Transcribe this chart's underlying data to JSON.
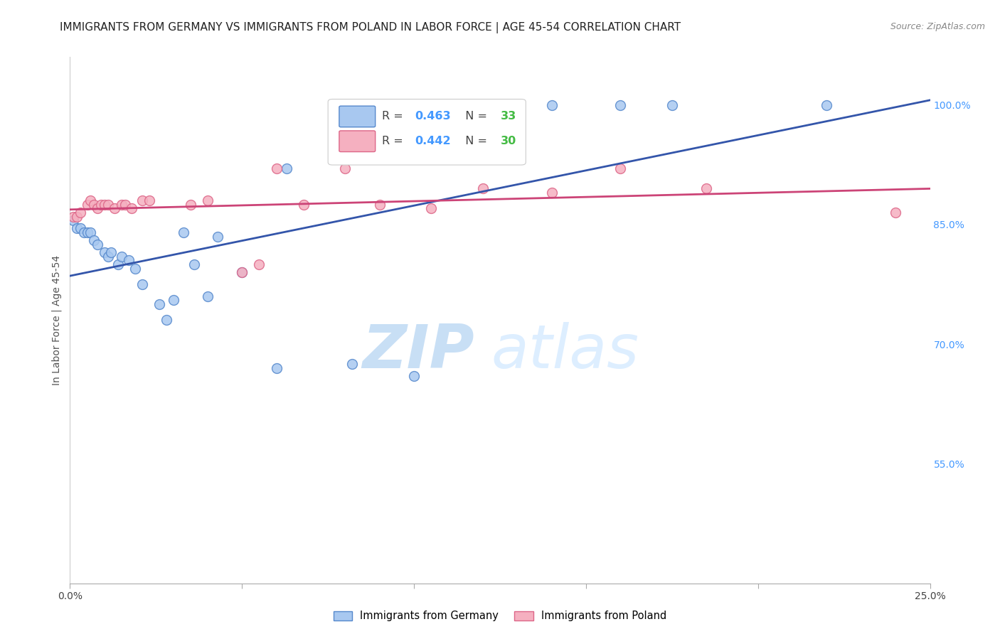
{
  "title": "IMMIGRANTS FROM GERMANY VS IMMIGRANTS FROM POLAND IN LABOR FORCE | AGE 45-54 CORRELATION CHART",
  "source_text": "Source: ZipAtlas.com",
  "ylabel": "In Labor Force | Age 45-54",
  "x_min": 0.0,
  "x_max": 0.25,
  "y_min": 0.4,
  "y_max": 1.06,
  "x_ticks": [
    0.0,
    0.05,
    0.1,
    0.15,
    0.2,
    0.25
  ],
  "x_tick_labels": [
    "0.0%",
    "",
    "",
    "",
    "",
    "25.0%"
  ],
  "y_ticks": [
    0.55,
    0.7,
    0.85,
    1.0
  ],
  "y_tick_labels": [
    "55.0%",
    "70.0%",
    "85.0%",
    "100.0%"
  ],
  "germany_R": 0.463,
  "germany_N": 33,
  "poland_R": 0.442,
  "poland_N": 30,
  "germany_color": "#a8c8f0",
  "germany_edge_color": "#5588cc",
  "germany_line_color": "#3355aa",
  "poland_color": "#f5b0c0",
  "poland_edge_color": "#dd6688",
  "poland_line_color": "#cc4477",
  "legend_R_color": "#4499ff",
  "legend_N_color": "#44bb44",
  "watermark_color": "#ddeeff",
  "background_color": "#ffffff",
  "grid_color": "#e0e0e0",
  "title_fontsize": 11,
  "germany_x": [
    0.001,
    0.002,
    0.003,
    0.004,
    0.005,
    0.006,
    0.007,
    0.008,
    0.01,
    0.011,
    0.012,
    0.014,
    0.015,
    0.017,
    0.019,
    0.021,
    0.026,
    0.028,
    0.03,
    0.033,
    0.036,
    0.04,
    0.043,
    0.05,
    0.06,
    0.063,
    0.082,
    0.1,
    0.12,
    0.14,
    0.16,
    0.175,
    0.22
  ],
  "germany_y": [
    0.855,
    0.845,
    0.845,
    0.84,
    0.84,
    0.84,
    0.83,
    0.825,
    0.815,
    0.81,
    0.815,
    0.8,
    0.81,
    0.805,
    0.795,
    0.775,
    0.75,
    0.73,
    0.755,
    0.84,
    0.8,
    0.76,
    0.835,
    0.79,
    0.67,
    0.92,
    0.675,
    0.66,
    0.97,
    1.0,
    1.0,
    1.0,
    1.0
  ],
  "poland_x": [
    0.001,
    0.002,
    0.003,
    0.005,
    0.006,
    0.007,
    0.008,
    0.009,
    0.01,
    0.011,
    0.013,
    0.015,
    0.016,
    0.018,
    0.021,
    0.023,
    0.035,
    0.04,
    0.05,
    0.055,
    0.06,
    0.068,
    0.08,
    0.09,
    0.105,
    0.12,
    0.14,
    0.16,
    0.185,
    0.24
  ],
  "poland_y": [
    0.86,
    0.86,
    0.865,
    0.875,
    0.88,
    0.875,
    0.87,
    0.875,
    0.875,
    0.875,
    0.87,
    0.875,
    0.875,
    0.87,
    0.88,
    0.88,
    0.875,
    0.88,
    0.79,
    0.8,
    0.92,
    0.875,
    0.92,
    0.875,
    0.87,
    0.895,
    0.89,
    0.92,
    0.895,
    0.865
  ],
  "marker_size": 100
}
